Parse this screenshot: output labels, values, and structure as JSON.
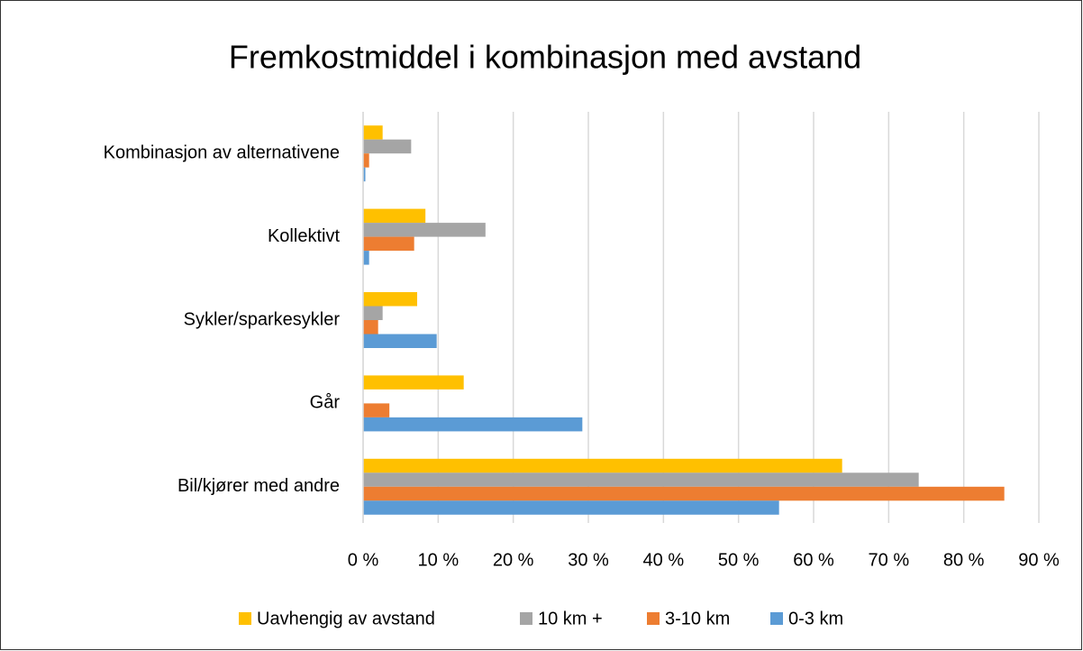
{
  "chart_data": {
    "type": "bar",
    "orientation": "horizontal",
    "title": "Fremkostmiddel i kombinasjon med avstand",
    "categories": [
      "Kombinasjon av alternativene",
      "Kollektivt",
      "Sykler/sparkesykler",
      "Går",
      "Bil/kjører med andre"
    ],
    "series": [
      {
        "name": "Uavhengig av avstand",
        "color": "#ffc000",
        "values": [
          2.6,
          8.3,
          7.2,
          13.4,
          63.8
        ]
      },
      {
        "name": "10 km +",
        "color": "#a5a5a5",
        "values": [
          6.4,
          16.3,
          2.6,
          0,
          74.0
        ]
      },
      {
        "name": "3-10 km",
        "color": "#ed7d31",
        "values": [
          0.8,
          6.8,
          2.0,
          3.5,
          85.4
        ]
      },
      {
        "name": "0-3 km",
        "color": "#5b9bd5",
        "values": [
          0.3,
          0.8,
          9.8,
          29.2,
          55.4
        ]
      }
    ],
    "xlim": [
      0,
      90
    ],
    "xticks": [
      {
        "value": 0,
        "label": "0 %"
      },
      {
        "value": 10,
        "label": "10 %"
      },
      {
        "value": 20,
        "label": "20 %"
      },
      {
        "value": 30,
        "label": "30 %"
      },
      {
        "value": 40,
        "label": "40 %"
      },
      {
        "value": 50,
        "label": "50 %"
      },
      {
        "value": 60,
        "label": "60 %"
      },
      {
        "value": 70,
        "label": "70 %"
      },
      {
        "value": 80,
        "label": "80 %"
      },
      {
        "value": 90,
        "label": "90 %"
      }
    ],
    "grid": true,
    "legend": "bottom"
  }
}
